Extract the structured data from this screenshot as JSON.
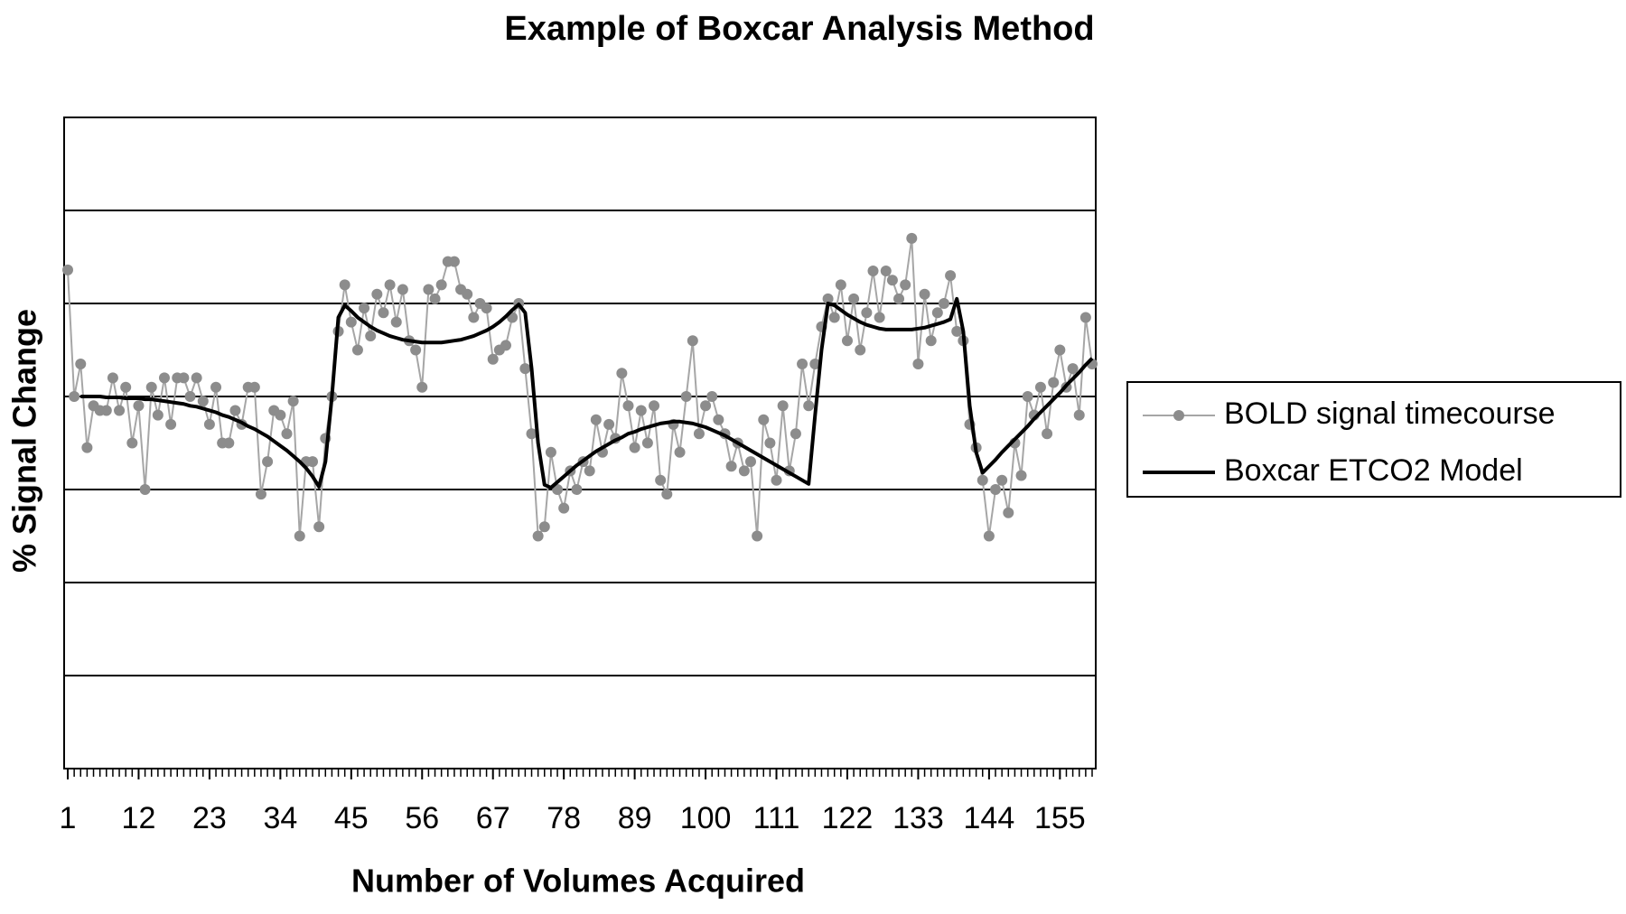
{
  "chart_data": {
    "type": "line",
    "title": "Example of Boxcar Analysis Method",
    "xlabel": "Number of Volumes Acquired",
    "ylabel": "% Signal Change",
    "x": [
      1,
      2,
      3,
      4,
      5,
      6,
      7,
      8,
      9,
      10,
      11,
      12,
      13,
      14,
      15,
      16,
      17,
      18,
      19,
      20,
      21,
      22,
      23,
      24,
      25,
      26,
      27,
      28,
      29,
      30,
      31,
      32,
      33,
      34,
      35,
      36,
      37,
      38,
      39,
      40,
      41,
      42,
      43,
      44,
      45,
      46,
      47,
      48,
      49,
      50,
      51,
      52,
      53,
      54,
      55,
      56,
      57,
      58,
      59,
      60,
      61,
      62,
      63,
      64,
      65,
      66,
      67,
      68,
      69,
      70,
      71,
      72,
      73,
      74,
      75,
      76,
      77,
      78,
      79,
      80,
      81,
      82,
      83,
      84,
      85,
      86,
      87,
      88,
      89,
      90,
      91,
      92,
      93,
      94,
      95,
      96,
      97,
      98,
      99,
      100,
      101,
      102,
      103,
      104,
      105,
      106,
      107,
      108,
      109,
      110,
      111,
      112,
      113,
      114,
      115,
      116,
      117,
      118,
      119,
      120,
      121,
      122,
      123,
      124,
      125,
      126,
      127,
      128,
      129,
      130,
      131,
      132,
      133,
      134,
      135,
      136,
      137,
      138,
      139,
      140,
      141,
      142,
      143,
      144,
      145,
      146,
      147,
      148,
      149,
      150,
      151,
      152,
      153,
      154,
      155,
      156,
      157,
      158,
      159,
      160
    ],
    "xlim": [
      1,
      160
    ],
    "xticks": [
      1,
      12,
      23,
      34,
      45,
      56,
      67,
      78,
      89,
      100,
      111,
      122,
      133,
      144,
      155
    ],
    "ylim": [
      0,
      7
    ],
    "yticks": [
      0,
      1,
      2,
      3,
      4,
      5,
      6,
      7
    ],
    "show_ytick_labels": false,
    "grid": true,
    "legend": "right",
    "series": [
      {
        "name": "BOLD signal timecourse",
        "color": "#8c8c8c",
        "marker": true,
        "values": [
          5.36,
          4.0,
          4.35,
          3.45,
          3.9,
          3.85,
          3.85,
          4.2,
          3.85,
          4.1,
          3.5,
          3.9,
          3.0,
          4.1,
          3.8,
          4.2,
          3.7,
          4.2,
          4.2,
          4.0,
          4.2,
          3.95,
          3.7,
          4.1,
          3.5,
          3.5,
          3.85,
          3.7,
          4.1,
          4.1,
          2.95,
          3.3,
          3.85,
          3.8,
          3.6,
          3.95,
          2.5,
          3.3,
          3.3,
          2.6,
          3.55,
          4.0,
          4.7,
          5.2,
          4.8,
          4.5,
          4.95,
          4.65,
          5.1,
          4.9,
          5.2,
          4.8,
          5.15,
          4.6,
          4.5,
          4.1,
          5.15,
          5.05,
          5.2,
          5.45,
          5.45,
          5.15,
          5.1,
          4.85,
          5.0,
          4.95,
          4.4,
          4.5,
          4.55,
          4.85,
          5.0,
          4.3,
          3.6,
          2.5,
          2.6,
          3.4,
          3.0,
          2.8,
          3.2,
          3.0,
          3.3,
          3.2,
          3.75,
          3.4,
          3.7,
          3.55,
          4.25,
          3.9,
          3.45,
          3.85,
          3.5,
          3.9,
          3.1,
          2.95,
          3.7,
          3.4,
          4.0,
          4.6,
          3.6,
          3.9,
          4.0,
          3.75,
          3.6,
          3.25,
          3.5,
          3.2,
          3.3,
          2.5,
          3.75,
          3.5,
          3.1,
          3.9,
          3.2,
          3.6,
          4.35,
          3.9,
          4.35,
          4.75,
          5.05,
          4.85,
          5.2,
          4.6,
          5.05,
          4.5,
          4.9,
          5.35,
          4.85,
          5.35,
          5.25,
          5.05,
          5.2,
          5.7,
          4.35,
          5.1,
          4.6,
          4.9,
          5.0,
          5.3,
          4.7,
          4.6,
          3.7,
          3.45,
          3.1,
          2.5,
          3.0,
          3.1,
          2.75,
          3.5,
          3.15,
          4.0,
          3.8,
          4.1,
          3.6,
          4.15,
          4.5,
          4.1,
          4.3,
          3.8,
          4.85,
          4.35
        ]
      },
      {
        "name": "Boxcar ETCO2 Model",
        "color": "#000000",
        "marker": false,
        "values": [
          null,
          null,
          4.0,
          4.0,
          4.0,
          4.0,
          3.99,
          3.99,
          3.99,
          3.98,
          3.98,
          3.98,
          3.97,
          3.97,
          3.96,
          3.95,
          3.94,
          3.93,
          3.92,
          3.9,
          3.89,
          3.87,
          3.85,
          3.83,
          3.8,
          3.78,
          3.75,
          3.72,
          3.68,
          3.65,
          3.61,
          3.57,
          3.52,
          3.47,
          3.42,
          3.36,
          3.3,
          3.23,
          3.14,
          3.03,
          3.3,
          4.0,
          4.85,
          4.98,
          4.92,
          4.85,
          4.8,
          4.75,
          4.71,
          4.68,
          4.65,
          4.63,
          4.61,
          4.6,
          4.59,
          4.58,
          4.58,
          4.58,
          4.58,
          4.59,
          4.6,
          4.61,
          4.63,
          4.65,
          4.68,
          4.71,
          4.75,
          4.8,
          4.86,
          4.93,
          4.99,
          4.9,
          4.3,
          3.5,
          3.05,
          3.02,
          3.08,
          3.14,
          3.2,
          3.26,
          3.31,
          3.36,
          3.41,
          3.45,
          3.49,
          3.53,
          3.56,
          3.6,
          3.62,
          3.65,
          3.67,
          3.69,
          3.71,
          3.72,
          3.73,
          3.73,
          3.72,
          3.71,
          3.69,
          3.67,
          3.64,
          3.61,
          3.58,
          3.54,
          3.5,
          3.46,
          3.42,
          3.38,
          3.34,
          3.3,
          3.26,
          3.22,
          3.18,
          3.14,
          3.1,
          3.06,
          3.8,
          4.5,
          5.0,
          4.98,
          4.93,
          4.88,
          4.84,
          4.8,
          4.77,
          4.75,
          4.73,
          4.72,
          4.72,
          4.72,
          4.72,
          4.72,
          4.73,
          4.74,
          4.76,
          4.78,
          4.8,
          4.83,
          5.05,
          4.7,
          3.9,
          3.4,
          3.18,
          3.25,
          3.32,
          3.4,
          3.47,
          3.54,
          3.61,
          3.68,
          3.76,
          3.83,
          3.9,
          3.97,
          4.04,
          4.12,
          4.19,
          4.26,
          4.34,
          4.41
        ]
      }
    ]
  }
}
